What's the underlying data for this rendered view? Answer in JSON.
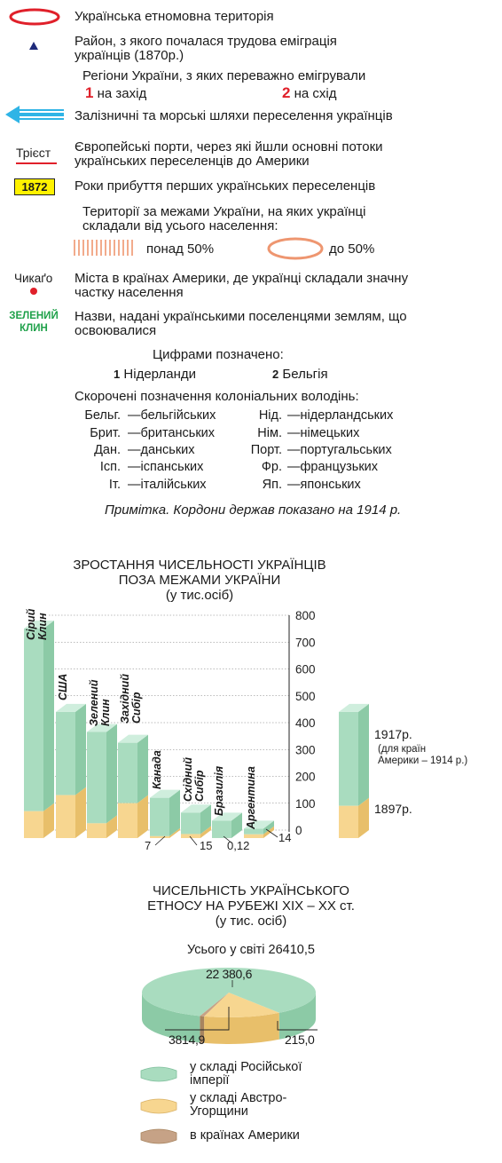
{
  "legend": {
    "ethnic_territory": "Українська етномовна територія",
    "district_line1": "Район, з якого почалася трудова еміграція",
    "district_line2": "українців (1870р.)",
    "regions_title": "Регіони України, з яких переважно емігрували",
    "region1_num": "1",
    "region1_label": "на захід",
    "region2_num": "2",
    "region2_label": "на схід",
    "routes": "Залізничні та морські  шляхи переселення українців",
    "port_sample": "Трієст",
    "ports_line1": "Європейські порти, через які йшли основні потоки",
    "ports_line2": "українських переселенців до Америки",
    "year_sample": "1872",
    "years": "Роки прибуття перших українських переселенців",
    "territories_line1": "Території за межами України, на яких українці",
    "territories_line2": "складали від усього населення:",
    "over50": "понад 50%",
    "upto50": "до 50%",
    "city_sample": "Чикаґо",
    "cities_line1": "Міста в країнах Америки, де українці складали  значну",
    "cities_line2": "частку населення",
    "name_sample_line1": "ЗЕЛЕНИЙ",
    "name_sample_line2": "КЛИН",
    "names_line1": "Назви, надані українськими поселенцями землям, що",
    "names_line2": "освоювалися",
    "digits_title": "Цифрами позначено:",
    "digit1_num": "1",
    "digit1_label": "Нідерланди",
    "digit2_num": "2",
    "digit2_label": "Бельгія",
    "abbr_title": "Скорочені позначення колоніальних володінь:",
    "abbr": [
      {
        "k": "Бельг.",
        "v": "бельгійських"
      },
      {
        "k": "Брит.",
        "v": "британських"
      },
      {
        "k": "Дан.",
        "v": "данських"
      },
      {
        "k": "Ісп.",
        "v": "іспанських"
      },
      {
        "k": "Іт.",
        "v": "італійських"
      },
      {
        "k": "Нід.",
        "v": "нідерландських"
      },
      {
        "k": "Нім.",
        "v": "німецьких"
      },
      {
        "k": "Порт.",
        "v": "португальських"
      },
      {
        "k": "Фр.",
        "v": "французьких"
      },
      {
        "k": "Яп.",
        "v": "японських"
      }
    ],
    "dash": "—",
    "note": "Примітка. Кордони держав показано на 1914 р."
  },
  "colors": {
    "red": "#e0202a",
    "blue_route": "#2fb4e6",
    "green": "#a9dcbf",
    "green_dark": "#8ccaa6",
    "yellow": "#f7d690",
    "yellow_dark": "#e8bf6a",
    "brown": "#c6a286",
    "peach": "#ee9670",
    "navy": "#1e2a7a"
  },
  "chart_data": [
    {
      "type": "bar",
      "title_line1": "ЗРОСТАННЯ ЧИСЕЛЬНОСТІ УКРАЇНЦІВ",
      "title_line2": "ПОЗА МЕЖАМИ УКРАЇНИ",
      "subtitle": "(у тис.осіб)",
      "categories": [
        {
          "name": "Сірий\nКлин"
        },
        {
          "name": "США"
        },
        {
          "name": "Зелений\nКлин"
        },
        {
          "name": "Західний\nСибір"
        },
        {
          "name": "Канада"
        },
        {
          "name": "Східний\nСибір"
        },
        {
          "name": "Бразилія"
        },
        {
          "name": "Аргентина"
        }
      ],
      "series": [
        {
          "name": "1897р.",
          "values": [
            100,
            160,
            55,
            130,
            7,
            15,
            0.12,
            14
          ]
        },
        {
          "name": "1917р.",
          "values": [
            780,
            470,
            395,
            355,
            150,
            95,
            65,
            35
          ]
        }
      ],
      "legend_1917": "1917р.",
      "legend_1917_note_line1": "(для країн",
      "legend_1917_note_line2": "Америки – 1914 р.)",
      "legend_1897": "1897р.",
      "value_labels": [
        {
          "text": "7",
          "category": 4
        },
        {
          "text": "15",
          "category": 5
        },
        {
          "text": "0,12",
          "category": 6
        },
        {
          "text": "14",
          "category": 7
        }
      ],
      "yticks": [
        "800",
        "700",
        "600",
        "500",
        "400",
        "300",
        "200",
        "100",
        "0"
      ],
      "ylim": [
        0,
        800
      ]
    },
    {
      "type": "pie",
      "title_line1": "ЧИСЕЛЬНІСТЬ УКРАЇНСЬКОГО",
      "title_line2": "ЕТНОСУ  НА РУБЕЖІ XIX – XX ст.",
      "subtitle": "(у тис. осіб)",
      "total_label": "Усього у світі 26410,5",
      "slices": [
        {
          "label": "у складі Російської\nімперії",
          "value": 22380.6,
          "value_label": "22 380,6"
        },
        {
          "label": "у складі Австро-\nУгорщини",
          "value": 3814.9,
          "value_label": "3814,9"
        },
        {
          "label": "в країнах Америки",
          "value": 215.0,
          "value_label": "215,0"
        }
      ]
    }
  ]
}
